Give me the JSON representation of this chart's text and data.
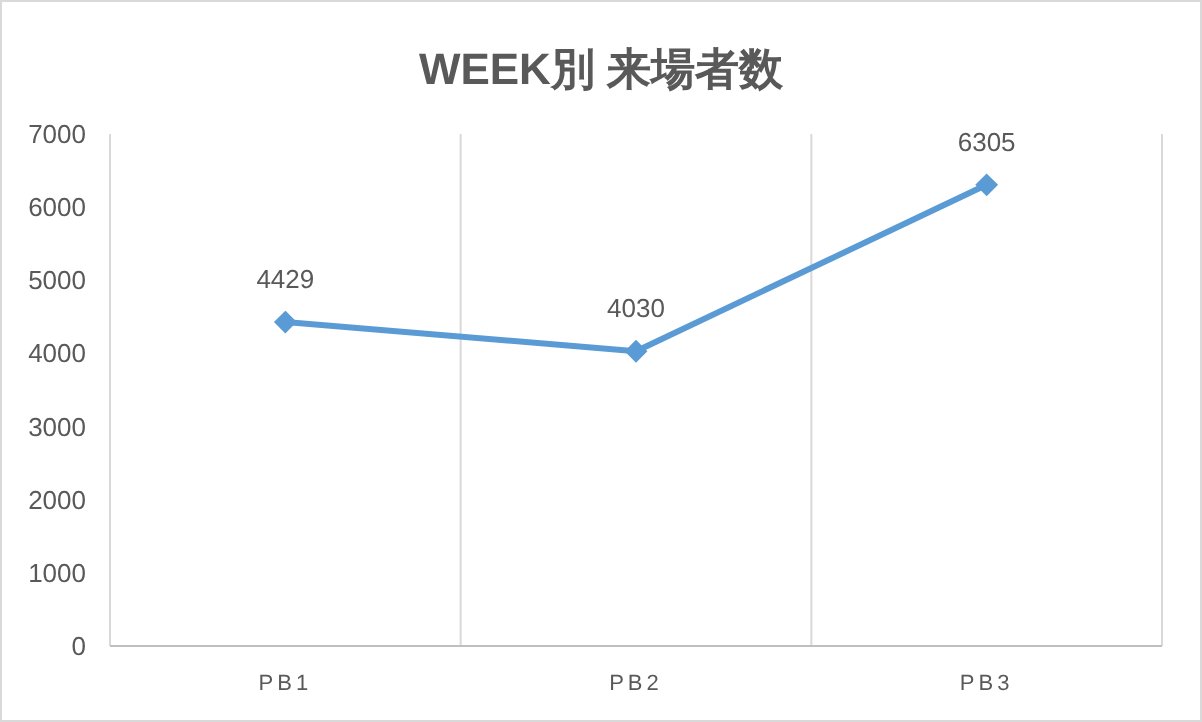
{
  "chart_data": {
    "type": "line",
    "title": "WEEK別 来場者数",
    "categories": [
      "PB1",
      "PB2",
      "PB3"
    ],
    "series": [
      {
        "color": "#5b9bd5",
        "values": [
          4429,
          4030,
          6305
        ]
      }
    ],
    "ylim": [
      0,
      7000
    ],
    "yticks": [
      0,
      1000,
      2000,
      3000,
      4000,
      5000,
      6000,
      7000
    ],
    "grid": "x",
    "marker": "diamond",
    "line_style": "solid",
    "data_labels": true
  }
}
